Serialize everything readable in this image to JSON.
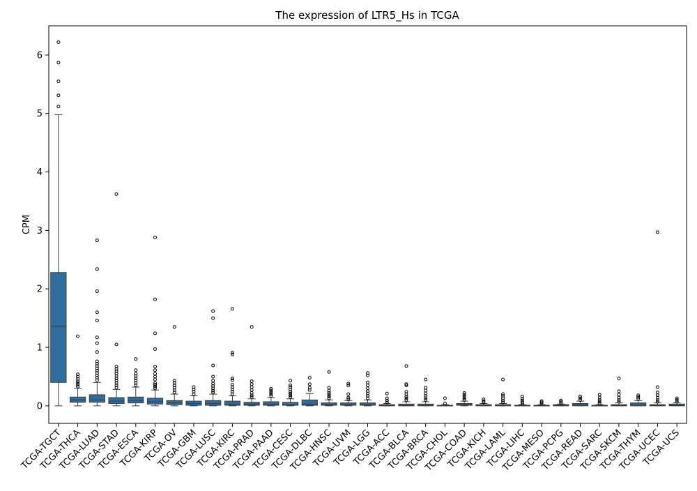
{
  "chart_data": {
    "type": "box",
    "title": "The expression of LTR5_Hs in TCGA",
    "xlabel": "",
    "ylabel": "CPM",
    "ylim": [
      -0.3,
      6.5
    ],
    "yticks": [
      0,
      1,
      2,
      3,
      4,
      5,
      6
    ],
    "box_color": "#2f6d9e",
    "categories": [
      "TCGA-TGCT",
      "TCGA-THCA",
      "TCGA-LUAD",
      "TCGA-STAD",
      "TCGA-ESCA",
      "TCGA-KIRP",
      "TCGA-OV",
      "TCGA-GBM",
      "TCGA-LUSC",
      "TCGA-KIRC",
      "TCGA-PRAD",
      "TCGA-PAAD",
      "TCGA-CESC",
      "TCGA-DLBC",
      "TCGA-HNSC",
      "TCGA-UVM",
      "TCGA-LGG",
      "TCGA-ACC",
      "TCGA-BLCA",
      "TCGA-BRCA",
      "TCGA-CHOL",
      "TCGA-COAD",
      "TCGA-KICH",
      "TCGA-LAML",
      "TCGA-LIHC",
      "TCGA-MESO",
      "TCGA-PCPG",
      "TCGA-READ",
      "TCGA-SARC",
      "TCGA-SKCM",
      "TCGA-THYM",
      "TCGA-UCEC",
      "TCGA-UCS"
    ],
    "boxes": [
      {
        "whislo": 0.0,
        "q1": 0.4,
        "med": 1.36,
        "q3": 2.28,
        "whishi": 4.98,
        "fliers": [
          5.12,
          5.31,
          5.55,
          5.87,
          6.22
        ]
      },
      {
        "whislo": 0.0,
        "q1": 0.06,
        "med": 0.1,
        "q3": 0.15,
        "whishi": 0.3,
        "fliers": [
          0.33,
          0.36,
          0.39,
          0.42,
          0.46,
          0.5,
          0.54,
          1.19
        ]
      },
      {
        "whislo": 0.0,
        "q1": 0.06,
        "med": 0.1,
        "q3": 0.19,
        "whishi": 0.4,
        "fliers": [
          0.44,
          0.48,
          0.52,
          0.56,
          0.6,
          0.64,
          0.68,
          0.72,
          0.76,
          0.92,
          1.07,
          1.17,
          1.46,
          1.6,
          1.96,
          2.34,
          2.83
        ]
      },
      {
        "whislo": 0.0,
        "q1": 0.04,
        "med": 0.08,
        "q3": 0.14,
        "whishi": 0.28,
        "fliers": [
          0.31,
          0.35,
          0.39,
          0.43,
          0.47,
          0.51,
          0.55,
          0.59,
          0.63,
          0.67,
          1.05,
          3.62
        ]
      },
      {
        "whislo": 0.0,
        "q1": 0.05,
        "med": 0.09,
        "q3": 0.15,
        "whishi": 0.32,
        "fliers": [
          0.35,
          0.39,
          0.43,
          0.47,
          0.51,
          0.55,
          0.61,
          0.8
        ]
      },
      {
        "whislo": 0.0,
        "q1": 0.03,
        "med": 0.07,
        "q3": 0.13,
        "whishi": 0.27,
        "fliers": [
          0.3,
          0.33,
          0.36,
          0.39,
          0.45,
          0.5,
          0.55,
          0.61,
          0.67,
          0.97,
          1.24,
          1.82,
          2.88
        ]
      },
      {
        "whislo": 0.0,
        "q1": 0.02,
        "med": 0.05,
        "q3": 0.09,
        "whishi": 0.2,
        "fliers": [
          0.23,
          0.27,
          0.31,
          0.35,
          0.39,
          0.43,
          1.35
        ]
      },
      {
        "whislo": 0.0,
        "q1": 0.01,
        "med": 0.04,
        "q3": 0.08,
        "whishi": 0.17,
        "fliers": [
          0.2,
          0.24,
          0.28,
          0.32
        ]
      },
      {
        "whislo": 0.0,
        "q1": 0.01,
        "med": 0.04,
        "q3": 0.09,
        "whishi": 0.2,
        "fliers": [
          0.23,
          0.26,
          0.3,
          0.34,
          0.38,
          0.43,
          0.5,
          0.69,
          1.5,
          1.62
        ]
      },
      {
        "whislo": 0.0,
        "q1": 0.01,
        "med": 0.03,
        "q3": 0.08,
        "whishi": 0.17,
        "fliers": [
          0.2,
          0.24,
          0.28,
          0.32,
          0.36,
          0.44,
          0.47,
          0.88,
          0.91,
          1.66
        ]
      },
      {
        "whislo": 0.0,
        "q1": 0.01,
        "med": 0.03,
        "q3": 0.06,
        "whishi": 0.12,
        "fliers": [
          0.15,
          0.18,
          0.22,
          0.27,
          0.32,
          0.37,
          0.42,
          1.35
        ]
      },
      {
        "whislo": 0.0,
        "q1": 0.01,
        "med": 0.03,
        "q3": 0.07,
        "whishi": 0.14,
        "fliers": [
          0.17,
          0.2,
          0.23,
          0.26,
          0.29
        ]
      },
      {
        "whislo": 0.0,
        "q1": 0.01,
        "med": 0.02,
        "q3": 0.06,
        "whishi": 0.12,
        "fliers": [
          0.15,
          0.18,
          0.21,
          0.24,
          0.28,
          0.32,
          0.35,
          0.43
        ]
      },
      {
        "whislo": 0.0,
        "q1": 0.01,
        "med": 0.03,
        "q3": 0.1,
        "whishi": 0.21,
        "fliers": [
          0.27,
          0.31,
          0.37,
          0.48
        ]
      },
      {
        "whislo": 0.0,
        "q1": 0.01,
        "med": 0.02,
        "q3": 0.05,
        "whishi": 0.1,
        "fliers": [
          0.13,
          0.16,
          0.19,
          0.22,
          0.26,
          0.31,
          0.58
        ]
      },
      {
        "whislo": 0.0,
        "q1": 0.01,
        "med": 0.02,
        "q3": 0.05,
        "whishi": 0.09,
        "fliers": [
          0.11,
          0.14,
          0.2,
          0.35,
          0.38
        ]
      },
      {
        "whislo": 0.0,
        "q1": 0.01,
        "med": 0.02,
        "q3": 0.05,
        "whishi": 0.1,
        "fliers": [
          0.13,
          0.17,
          0.21,
          0.25,
          0.3,
          0.35,
          0.4,
          0.52,
          0.56
        ]
      },
      {
        "whislo": 0.0,
        "q1": 0.0,
        "med": 0.01,
        "q3": 0.02,
        "whishi": 0.04,
        "fliers": [
          0.06,
          0.09,
          0.13,
          0.21
        ]
      },
      {
        "whislo": 0.0,
        "q1": 0.0,
        "med": 0.01,
        "q3": 0.03,
        "whishi": 0.07,
        "fliers": [
          0.1,
          0.13,
          0.16,
          0.2,
          0.24,
          0.35,
          0.37,
          0.68
        ]
      },
      {
        "whislo": 0.0,
        "q1": 0.0,
        "med": 0.01,
        "q3": 0.03,
        "whishi": 0.07,
        "fliers": [
          0.1,
          0.13,
          0.17,
          0.21,
          0.26,
          0.31,
          0.45
        ]
      },
      {
        "whislo": 0.0,
        "q1": 0.0,
        "med": 0.01,
        "q3": 0.01,
        "whishi": 0.02,
        "fliers": [
          0.04,
          0.13
        ]
      },
      {
        "whislo": 0.0,
        "q1": 0.01,
        "med": 0.02,
        "q3": 0.04,
        "whishi": 0.08,
        "fliers": [
          0.1,
          0.13,
          0.16,
          0.19,
          0.22
        ]
      },
      {
        "whislo": 0.0,
        "q1": 0.0,
        "med": 0.01,
        "q3": 0.02,
        "whishi": 0.04,
        "fliers": [
          0.06,
          0.08,
          0.11
        ]
      },
      {
        "whislo": 0.0,
        "q1": 0.0,
        "med": 0.01,
        "q3": 0.02,
        "whishi": 0.04,
        "fliers": [
          0.06,
          0.09,
          0.13,
          0.17,
          0.2,
          0.45
        ]
      },
      {
        "whislo": 0.0,
        "q1": 0.0,
        "med": 0.0,
        "q3": 0.01,
        "whishi": 0.02,
        "fliers": [
          0.04,
          0.06,
          0.09,
          0.12,
          0.16
        ]
      },
      {
        "whislo": 0.0,
        "q1": 0.0,
        "med": 0.0,
        "q3": 0.01,
        "whishi": 0.02,
        "fliers": [
          0.04,
          0.06,
          0.08
        ]
      },
      {
        "whislo": 0.0,
        "q1": 0.0,
        "med": 0.01,
        "q3": 0.02,
        "whishi": 0.03,
        "fliers": [
          0.05,
          0.07,
          0.09
        ]
      },
      {
        "whislo": 0.0,
        "q1": 0.0,
        "med": 0.02,
        "q3": 0.04,
        "whishi": 0.08,
        "fliers": [
          0.1,
          0.13,
          0.16
        ]
      },
      {
        "whislo": 0.0,
        "q1": 0.0,
        "med": 0.0,
        "q3": 0.01,
        "whishi": 0.02,
        "fliers": [
          0.04,
          0.07,
          0.1,
          0.14,
          0.19
        ]
      },
      {
        "whislo": 0.0,
        "q1": 0.0,
        "med": 0.01,
        "q3": 0.02,
        "whishi": 0.05,
        "fliers": [
          0.07,
          0.1,
          0.14,
          0.19,
          0.25,
          0.47
        ]
      },
      {
        "whislo": 0.0,
        "q1": 0.0,
        "med": 0.02,
        "q3": 0.05,
        "whishi": 0.09,
        "fliers": [
          0.12,
          0.15,
          0.18
        ]
      },
      {
        "whislo": 0.0,
        "q1": 0.0,
        "med": 0.01,
        "q3": 0.02,
        "whishi": 0.05,
        "fliers": [
          0.07,
          0.1,
          0.14,
          0.18,
          0.23,
          0.32,
          2.97
        ]
      },
      {
        "whislo": 0.0,
        "q1": 0.0,
        "med": 0.01,
        "q3": 0.03,
        "whishi": 0.05,
        "fliers": [
          0.07,
          0.1,
          0.13
        ]
      }
    ]
  }
}
